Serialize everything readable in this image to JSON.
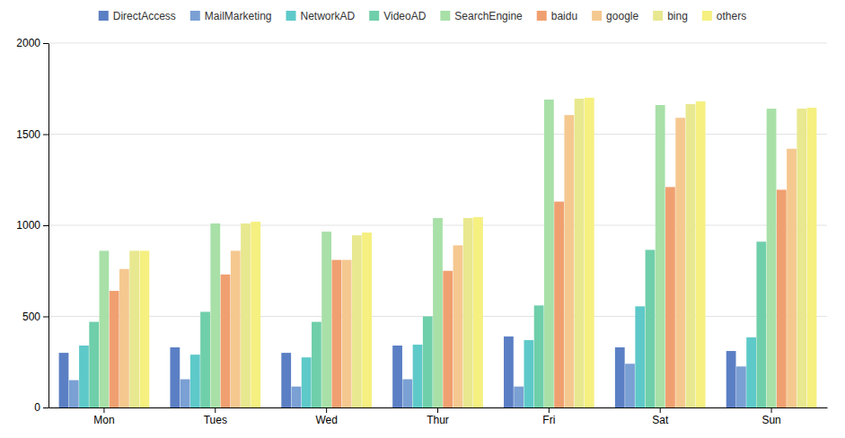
{
  "chart_data": {
    "type": "bar",
    "categories": [
      "Mon",
      "Tues",
      "Wed",
      "Thur",
      "Fri",
      "Sat",
      "Sun"
    ],
    "series": [
      {
        "name": "DirectAccess",
        "color": "#5b7fc4",
        "values": [
          300,
          330,
          300,
          340,
          390,
          330,
          310
        ]
      },
      {
        "name": "MailMarketing",
        "color": "#7aa0d4",
        "values": [
          150,
          155,
          115,
          155,
          115,
          240,
          225
        ]
      },
      {
        "name": "NetworkAD",
        "color": "#5ec9c9",
        "values": [
          340,
          290,
          275,
          345,
          370,
          555,
          385
        ]
      },
      {
        "name": "VideoAD",
        "color": "#6fcfaa",
        "values": [
          470,
          525,
          470,
          500,
          560,
          865,
          910
        ]
      },
      {
        "name": "SearchEngine",
        "color": "#a8e0a8",
        "values": [
          860,
          1010,
          965,
          1040,
          1690,
          1660,
          1640
        ]
      },
      {
        "name": "baidu",
        "color": "#f0a070",
        "values": [
          640,
          730,
          810,
          750,
          1130,
          1210,
          1195
        ]
      },
      {
        "name": "google",
        "color": "#f5c890",
        "values": [
          760,
          860,
          810,
          890,
          1605,
          1590,
          1420
        ]
      },
      {
        "name": "bing",
        "color": "#e8e890",
        "values": [
          860,
          1010,
          945,
          1040,
          1695,
          1665,
          1640
        ]
      },
      {
        "name": "others",
        "color": "#f5f080",
        "values": [
          860,
          1020,
          960,
          1045,
          1700,
          1680,
          1645
        ]
      }
    ],
    "ylim": [
      0,
      2000
    ],
    "yticks": [
      0,
      500,
      1000,
      1500,
      2000
    ],
    "grid": true,
    "legend": "top"
  }
}
